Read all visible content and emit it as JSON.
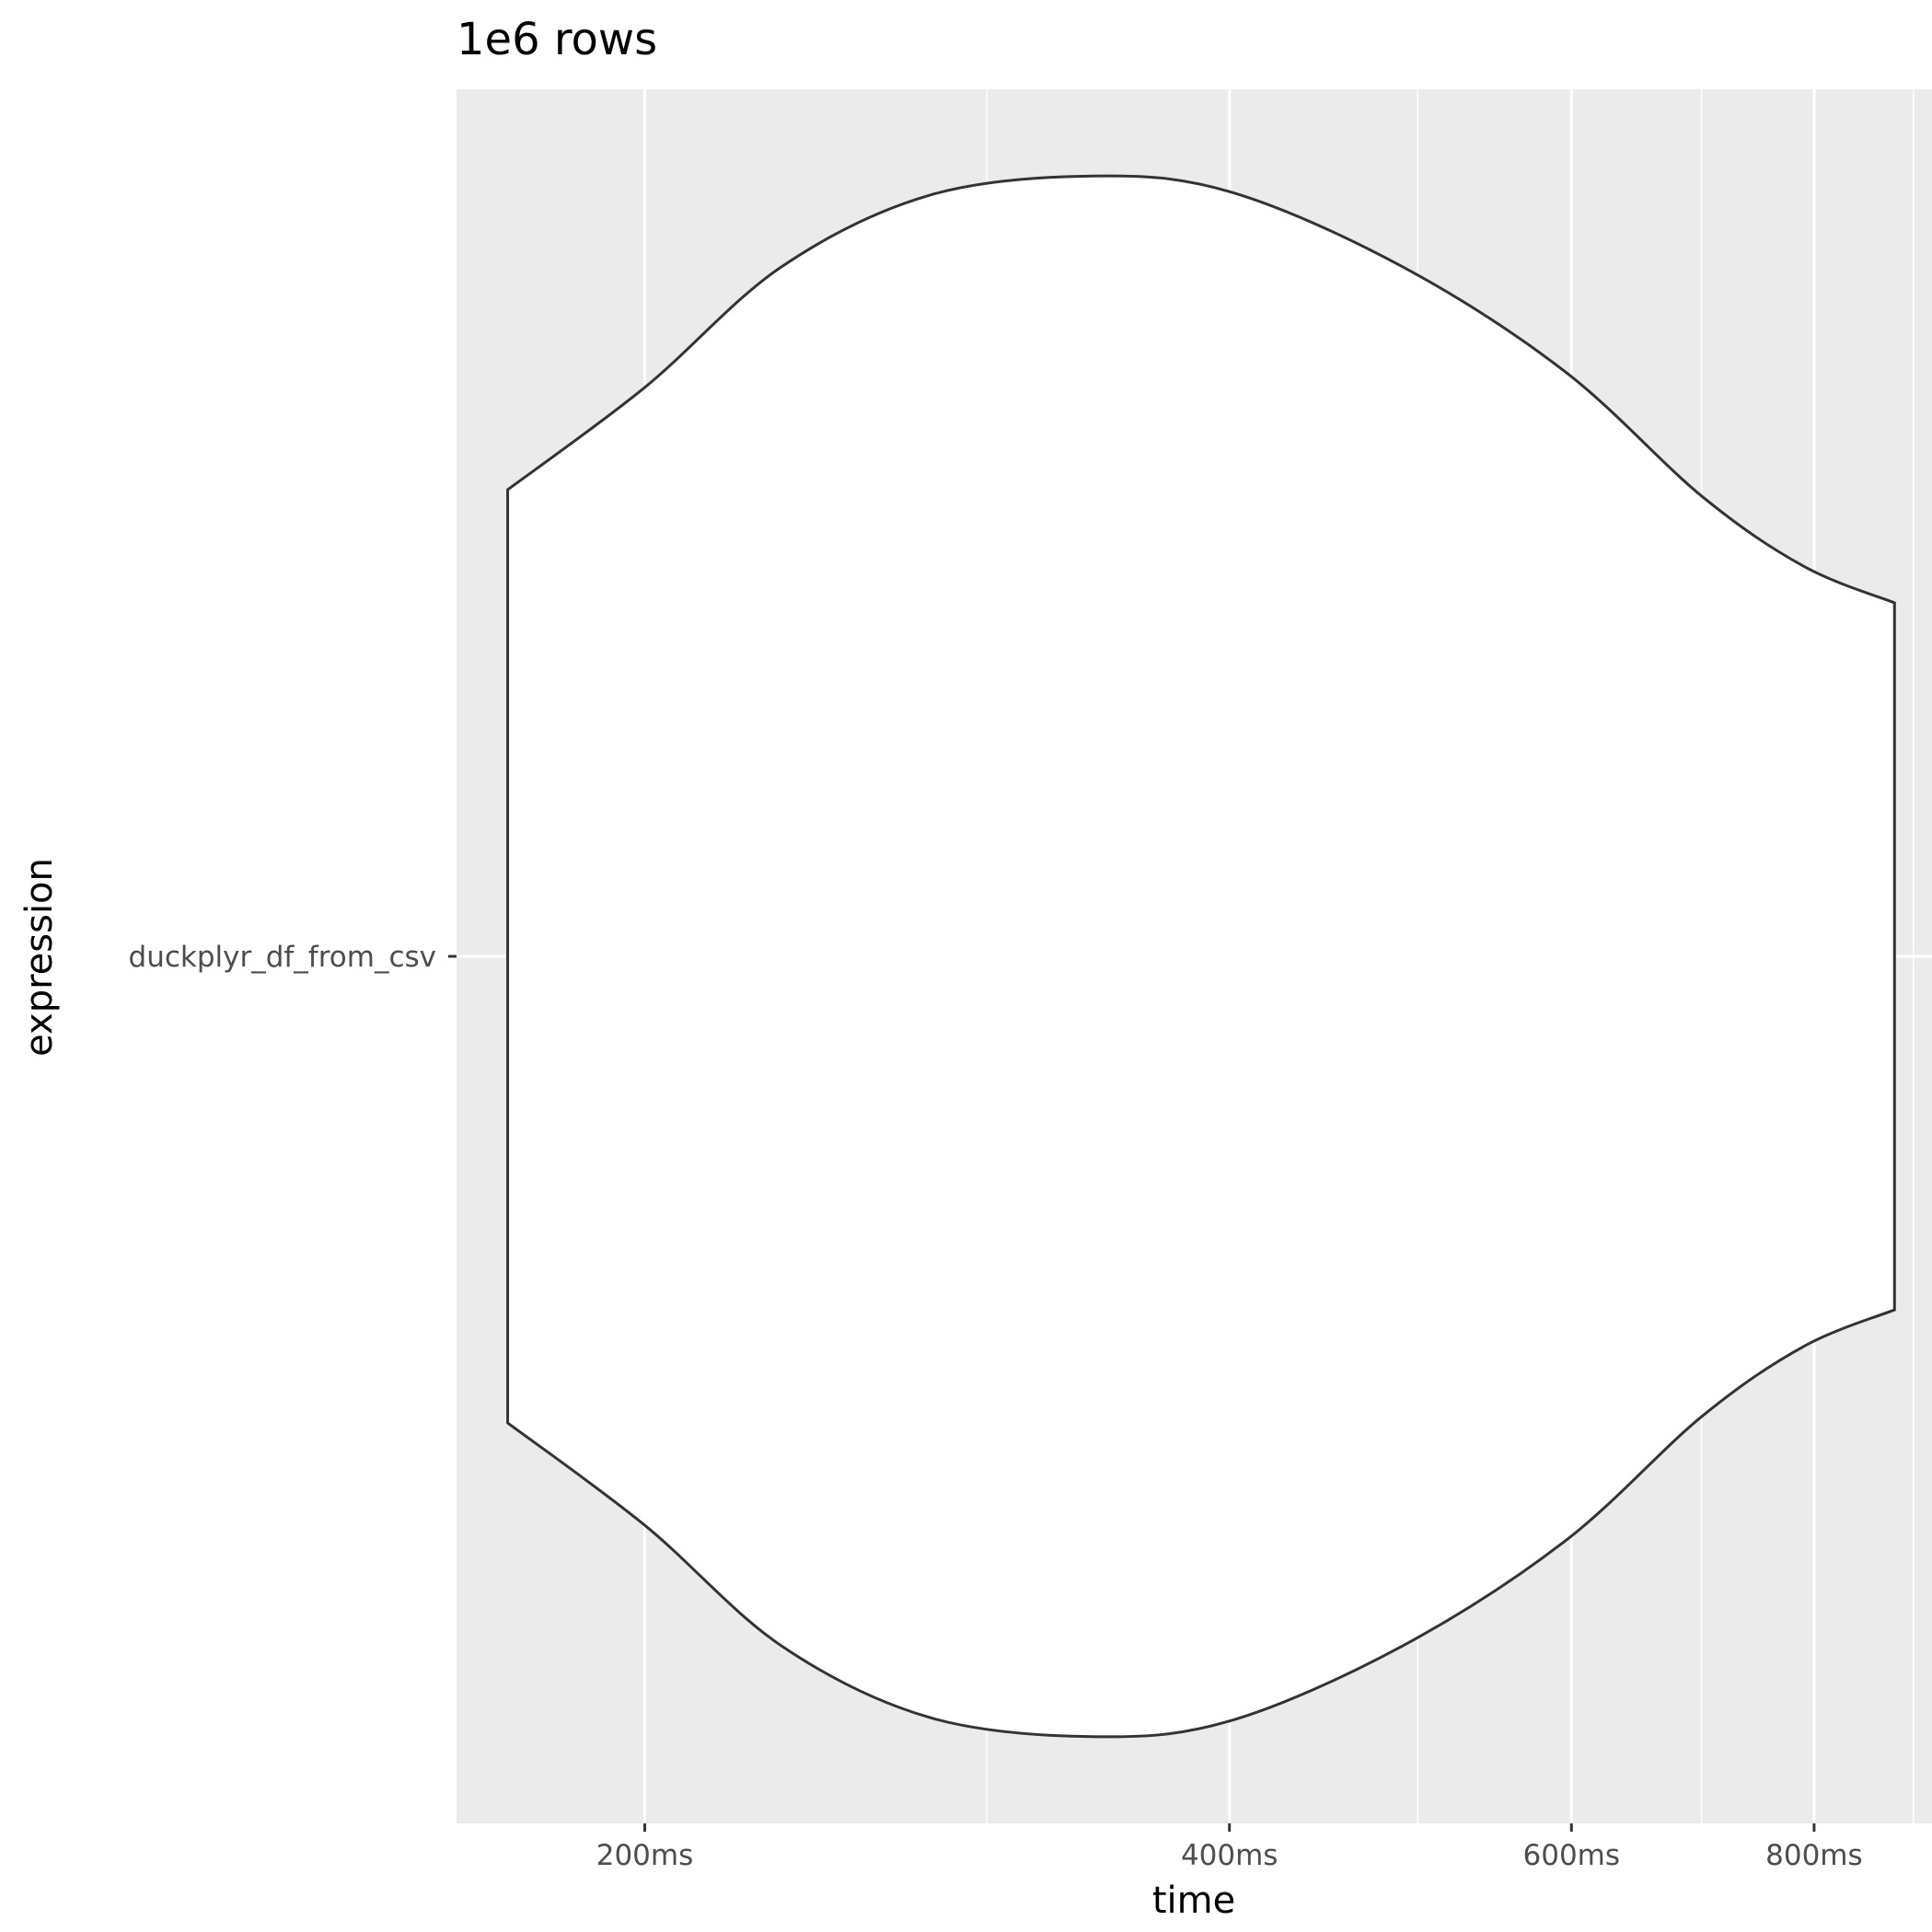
{
  "chart_data": {
    "type": "violin",
    "title": "1e6 rows",
    "xlabel": "time",
    "ylabel": "expression",
    "x_scale": "log10",
    "x_unit": "ms",
    "xlim": [
      160,
      920
    ],
    "x_ticks": [
      {
        "value": 200,
        "label": "200ms"
      },
      {
        "value": 400,
        "label": "400ms"
      },
      {
        "value": 600,
        "label": "600ms"
      },
      {
        "value": 800,
        "label": "800ms"
      }
    ],
    "x_minor_gridlines": [
      300,
      500,
      700,
      900
    ],
    "categories": [
      "duckplyr_df_from_csv"
    ],
    "grid": true,
    "legend": "none",
    "colors": {
      "panel_background": "#ebebeb",
      "gridline": "#ffffff",
      "violin_fill": "#ffffff",
      "violin_outline": "#333333",
      "tick_text": "#4d4d4d"
    },
    "series": [
      {
        "category": "duckplyr_df_from_csv",
        "min": 170,
        "max": 880,
        "density_profile": [
          {
            "x": 170,
            "width": 0.598
          },
          {
            "x": 200,
            "width": 0.729
          },
          {
            "x": 235,
            "width": 0.883
          },
          {
            "x": 280,
            "width": 0.975
          },
          {
            "x": 340,
            "width": 1.0
          },
          {
            "x": 400,
            "width": 0.98
          },
          {
            "x": 490,
            "width": 0.885
          },
          {
            "x": 595,
            "width": 0.75
          },
          {
            "x": 700,
            "width": 0.59
          },
          {
            "x": 790,
            "width": 0.5
          },
          {
            "x": 880,
            "width": 0.453
          }
        ]
      }
    ]
  }
}
